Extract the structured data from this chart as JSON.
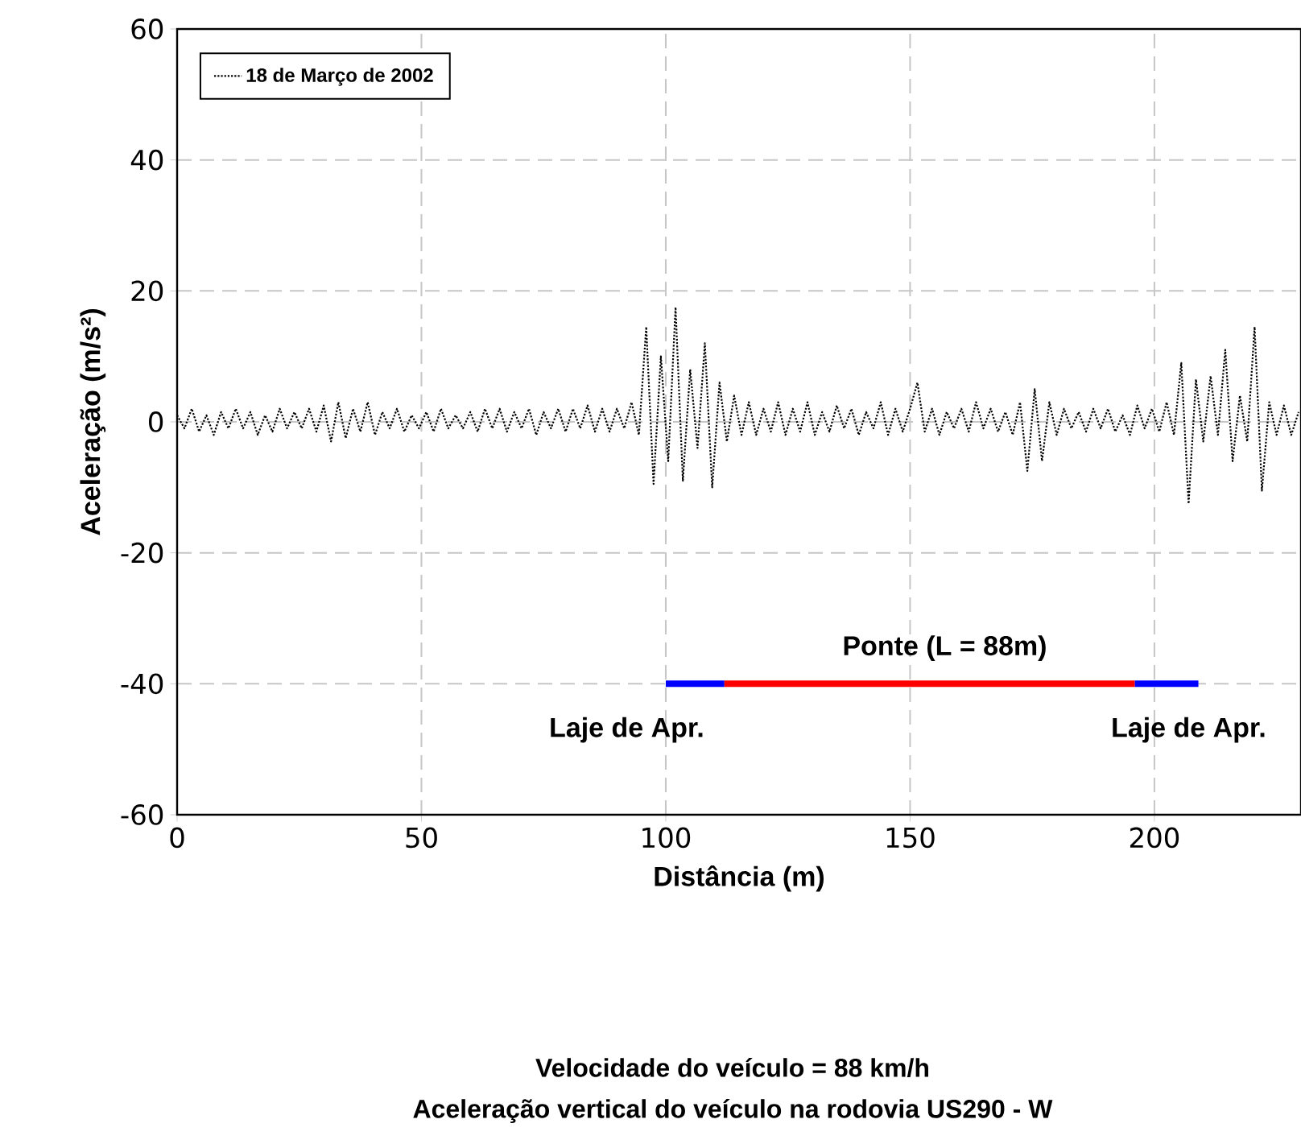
{
  "chart_data": {
    "type": "line",
    "xlabel": "Distância (m)",
    "ylabel": "Aceleração (m/s²)",
    "xlim": [
      0,
      230
    ],
    "ylim": [
      -60,
      60
    ],
    "xticks": [
      0,
      50,
      100,
      150,
      200
    ],
    "yticks": [
      -60,
      -40,
      -20,
      0,
      20,
      40,
      60
    ],
    "grid": true,
    "legend": "top left",
    "series": [
      {
        "name": "18 de Março de 2002",
        "color": "#000000",
        "line_style": "dotted",
        "x": [
          0,
          1.5,
          3,
          4.5,
          6,
          7.5,
          9,
          10.5,
          12,
          13.5,
          15,
          16.5,
          18,
          19.5,
          21,
          22.5,
          24,
          25.5,
          27,
          28.5,
          30,
          31.5,
          33,
          34.5,
          36,
          37.5,
          39,
          40.5,
          42,
          43.5,
          45,
          46.5,
          48,
          49.5,
          51,
          52.5,
          54,
          55.5,
          57,
          58.5,
          60,
          61.5,
          63,
          64.5,
          66,
          67.5,
          69,
          70.5,
          72,
          73.5,
          75,
          76.5,
          78,
          79.5,
          81,
          82.5,
          84,
          85.5,
          87,
          88.5,
          90,
          91.5,
          93,
          94.5,
          96,
          97.5,
          99,
          100.5,
          102,
          103.5,
          105,
          106.5,
          108,
          109.5,
          111,
          112.5,
          114,
          115.5,
          117,
          118.5,
          120,
          121.5,
          123,
          124.5,
          126,
          127.5,
          129,
          130.5,
          132,
          133.5,
          135,
          136.5,
          138,
          139.5,
          141,
          142.5,
          144,
          145.5,
          147,
          148.5,
          150,
          151.5,
          153,
          154.5,
          156,
          157.5,
          159,
          160.5,
          162,
          163.5,
          165,
          166.5,
          168,
          169.5,
          171,
          172.5,
          174,
          175.5,
          177,
          178.5,
          180,
          181.5,
          183,
          184.5,
          186,
          187.5,
          189,
          190.5,
          192,
          193.5,
          195,
          196.5,
          198,
          199.5,
          201,
          202.5,
          204,
          205.5,
          207,
          208.5,
          210,
          211.5,
          213,
          214.5,
          216,
          217.5,
          219,
          220.5,
          222,
          223.5,
          225,
          226.5,
          228,
          229.5
        ],
        "values": [
          1,
          -1,
          2,
          -1.5,
          1,
          -2,
          1.5,
          -1,
          2,
          -1,
          1.5,
          -2,
          1,
          -1.5,
          2,
          -1,
          1.5,
          -1,
          2,
          -1.5,
          2.5,
          -3,
          3,
          -2.5,
          2,
          -1.5,
          3,
          -2,
          1.5,
          -1,
          2,
          -1.5,
          1,
          -1,
          1.5,
          -1.5,
          2,
          -1,
          1,
          -1,
          1.5,
          -1.5,
          2,
          -1,
          2,
          -1.5,
          1.5,
          -1,
          2,
          -2,
          1.5,
          -1,
          2,
          -1.5,
          2,
          -1,
          2.5,
          -1.5,
          2,
          -1.5,
          2,
          -1,
          3,
          -2,
          14.5,
          -9.5,
          10,
          -6,
          17.5,
          -9,
          8,
          -4,
          12,
          -10,
          6,
          -3,
          4,
          -2,
          3,
          -2,
          2,
          -1.5,
          3,
          -2,
          2,
          -1.5,
          3,
          -2,
          1.5,
          -1.5,
          2.5,
          -1,
          2,
          -2,
          1.5,
          -1,
          3,
          -2,
          2,
          -1.5,
          2,
          6,
          -1.5,
          2,
          -2,
          1.5,
          -1,
          2,
          -1.5,
          3,
          -1,
          2,
          -1.5,
          1.5,
          -2,
          3,
          -7.5,
          5,
          -6,
          3,
          -2,
          2,
          -1,
          1.5,
          -1.5,
          2,
          -1,
          2,
          -1.5,
          1,
          -2,
          2.5,
          -1,
          2,
          -1.5,
          3,
          -2,
          9,
          -12.5,
          6.5,
          -3,
          7,
          -2,
          11,
          -6,
          4,
          -3,
          14.5,
          -10.5,
          3,
          -2,
          2.5,
          -2,
          1.5
        ]
      },
      {
        "type": "line",
        "color": "#0000ff",
        "x": [
          100,
          112
        ],
        "values": [
          -40,
          -40
        ]
      },
      {
        "type": "line",
        "color": "#ff0000",
        "x": [
          112,
          196
        ],
        "values": [
          -40,
          -40
        ]
      },
      {
        "type": "line",
        "color": "#0000ff",
        "x": [
          196,
          209
        ],
        "values": [
          -40,
          -40
        ]
      }
    ],
    "annotations": [
      "Ponte (L = 88m)",
      "Laje de Apr.",
      "Laje de Apr.",
      "Velocidade do veículo = 88 km/h",
      "Aceleração vertical do veículo na rodovia US290 - W"
    ]
  }
}
